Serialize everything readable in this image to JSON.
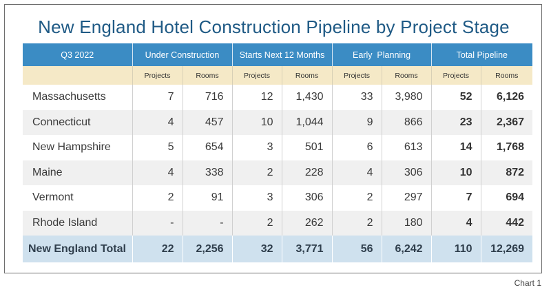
{
  "title": "New England Hotel Construction Pipeline by Project Stage",
  "chart_label": "Chart 1",
  "chart_data": {
    "type": "table",
    "title": "New England Hotel Construction Pipeline by Project Stage",
    "corner_label": "Q3 2022",
    "groups": [
      "Under Construction",
      "Starts Next 12 Months",
      "Early  Planning",
      "Total Pipeline"
    ],
    "subheaders": [
      "Projects",
      "Rooms"
    ],
    "rows": [
      {
        "state": "Massachusetts",
        "values": [
          "7",
          "716",
          "12",
          "1,430",
          "33",
          "3,980",
          "52",
          "6,126"
        ]
      },
      {
        "state": "Connecticut",
        "values": [
          "4",
          "457",
          "10",
          "1,044",
          "9",
          "866",
          "23",
          "2,367"
        ]
      },
      {
        "state": "New Hampshire",
        "values": [
          "5",
          "654",
          "3",
          "501",
          "6",
          "613",
          "14",
          "1,768"
        ]
      },
      {
        "state": "Maine",
        "values": [
          "4",
          "338",
          "2",
          "228",
          "4",
          "306",
          "10",
          "872"
        ]
      },
      {
        "state": "Vermont",
        "values": [
          "2",
          "91",
          "3",
          "306",
          "2",
          "297",
          "7",
          "694"
        ]
      },
      {
        "state": "Rhode Island",
        "values": [
          "-",
          "-",
          "2",
          "262",
          "2",
          "180",
          "4",
          "442"
        ]
      }
    ],
    "total": {
      "label": "New England Total",
      "values": [
        "22",
        "2,256",
        "32",
        "3,771",
        "56",
        "6,242",
        "110",
        "12,269"
      ]
    }
  },
  "colors": {
    "title": "#1f5a85",
    "header_bg": "#3b8cc4",
    "subheader_bg": "#f5e9c7",
    "total_bg": "#cfe1ee",
    "stripe_bg": "#f0f0f0"
  }
}
